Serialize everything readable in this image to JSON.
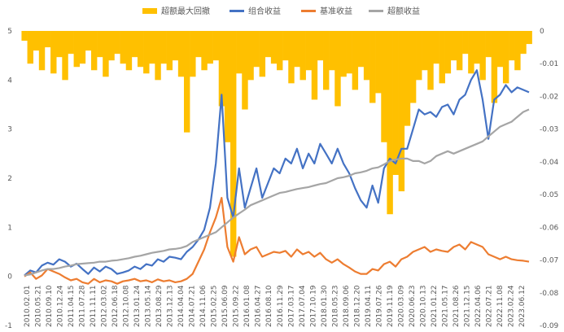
{
  "chart_data": {
    "type": "line",
    "title": "",
    "legend": {
      "placement": "top"
    },
    "grid": false,
    "x_ticks": [
      "2010.02.01",
      "2010.05.21",
      "2010.09.10",
      "2010.12.24",
      "2011.04.15",
      "2011.07.28",
      "2011.11.11",
      "2012.03.02",
      "2012.06.18",
      "2012.10.08",
      "2013.01.24",
      "2013.05.14",
      "2013.08.29",
      "2013.12.13",
      "2014.04.04",
      "2014.07.21",
      "2014.11.06",
      "2015.02.25",
      "2015.06.09",
      "2015.09.22",
      "2016.01.08",
      "2016.04.27",
      "2016.08.10",
      "2016.11.29",
      "2017.03.17",
      "2017.07.04",
      "2017.10.19",
      "2018.01.30",
      "2018.05.23",
      "2018.09.06",
      "2018.12.20",
      "2019.04.11",
      "2019.07.26",
      "2019.11.19",
      "2020.03.09",
      "2020.06.23",
      "2020.10.13",
      "2021.01.22",
      "2021.05.17",
      "2021.08.26",
      "2021.12.15",
      "2022.04.06",
      "2022.07.21",
      "2022.11.08",
      "2023.02.24",
      "2023.06.12"
    ],
    "y_left": {
      "ticks": [
        "5",
        "4",
        "3",
        "2",
        "1",
        "0",
        "-1"
      ],
      "range": [
        -1,
        5
      ]
    },
    "y_right": {
      "ticks": [
        "0",
        "-0.01",
        "-0.02",
        "-0.03",
        "-0.04",
        "-0.05",
        "-0.06",
        "-0.07",
        "-0.08",
        "-0.09"
      ],
      "range": [
        -0.09,
        0
      ]
    },
    "series": [
      {
        "name": "超额最大回撤",
        "type": "area",
        "axis": "right",
        "color": "#FFC000",
        "values": [
          -0.003,
          -0.01,
          -0.006,
          -0.012,
          -0.005,
          -0.013,
          -0.008,
          -0.015,
          -0.007,
          -0.011,
          -0.01,
          -0.006,
          -0.012,
          -0.008,
          -0.014,
          -0.009,
          -0.007,
          -0.01,
          -0.012,
          -0.008,
          -0.011,
          -0.013,
          -0.01,
          -0.015,
          -0.01,
          -0.012,
          -0.009,
          -0.014,
          -0.031,
          -0.014,
          -0.008,
          -0.012,
          -0.01,
          -0.009,
          -0.023,
          -0.034,
          -0.069,
          -0.013,
          -0.024,
          -0.015,
          -0.011,
          -0.014,
          -0.008,
          -0.01,
          -0.012,
          -0.009,
          -0.016,
          -0.011,
          -0.015,
          -0.012,
          -0.021,
          -0.009,
          -0.018,
          -0.012,
          -0.023,
          -0.014,
          -0.013,
          -0.018,
          -0.011,
          -0.015,
          -0.022,
          -0.019,
          -0.034,
          -0.056,
          -0.044,
          -0.049,
          -0.029,
          -0.022,
          -0.015,
          -0.012,
          -0.018,
          -0.01,
          -0.016,
          -0.013,
          -0.009,
          -0.012,
          -0.007,
          -0.013,
          -0.01,
          -0.015,
          -0.008,
          -0.022,
          -0.011,
          -0.016,
          -0.009,
          -0.012,
          -0.007,
          -0.004
        ]
      },
      {
        "name": "组合收益",
        "type": "line",
        "axis": "left",
        "color": "#4472C4",
        "values": [
          0.02,
          0.12,
          0.08,
          0.22,
          0.28,
          0.24,
          0.35,
          0.3,
          0.2,
          0.26,
          0.15,
          0.05,
          0.18,
          0.1,
          0.2,
          0.15,
          0.05,
          0.08,
          0.12,
          0.2,
          0.15,
          0.25,
          0.22,
          0.35,
          0.3,
          0.4,
          0.38,
          0.35,
          0.5,
          0.6,
          0.75,
          0.95,
          1.4,
          2.3,
          3.7,
          1.6,
          1.2,
          2.2,
          1.4,
          1.8,
          2.2,
          1.6,
          1.9,
          2.2,
          2.1,
          2.4,
          2.3,
          2.6,
          2.2,
          2.5,
          2.3,
          2.7,
          2.5,
          2.3,
          2.6,
          2.3,
          2.1,
          1.8,
          1.55,
          1.4,
          1.85,
          1.5,
          2.2,
          2.4,
          2.3,
          2.6,
          2.6,
          3.0,
          3.4,
          3.3,
          3.35,
          3.25,
          3.45,
          3.5,
          3.3,
          3.6,
          3.7,
          4.0,
          4.2,
          3.6,
          2.8,
          3.6,
          3.7,
          3.9,
          3.75,
          3.85,
          3.8,
          3.75
        ]
      },
      {
        "name": "基准收益",
        "type": "line",
        "axis": "left",
        "color": "#ED7D31",
        "values": [
          0.0,
          0.08,
          -0.05,
          0.02,
          0.15,
          0.1,
          0.05,
          -0.02,
          -0.08,
          -0.05,
          -0.12,
          -0.15,
          -0.05,
          -0.12,
          -0.08,
          -0.1,
          -0.15,
          -0.1,
          -0.08,
          -0.05,
          -0.1,
          -0.08,
          -0.12,
          -0.06,
          -0.1,
          -0.08,
          -0.12,
          -0.1,
          -0.05,
          0.05,
          0.3,
          0.55,
          0.9,
          1.2,
          1.6,
          0.6,
          0.3,
          0.8,
          0.45,
          0.55,
          0.6,
          0.4,
          0.45,
          0.5,
          0.48,
          0.52,
          0.4,
          0.55,
          0.45,
          0.5,
          0.4,
          0.48,
          0.35,
          0.28,
          0.35,
          0.25,
          0.18,
          0.1,
          0.05,
          0.05,
          0.15,
          0.12,
          0.25,
          0.3,
          0.2,
          0.35,
          0.4,
          0.5,
          0.55,
          0.6,
          0.5,
          0.55,
          0.52,
          0.5,
          0.6,
          0.65,
          0.55,
          0.7,
          0.65,
          0.6,
          0.45,
          0.4,
          0.35,
          0.4,
          0.35,
          0.33,
          0.32,
          0.3
        ]
      },
      {
        "name": "超额收益",
        "type": "line",
        "axis": "left",
        "color": "#A5A5A5",
        "values": [
          0.02,
          0.04,
          0.08,
          0.12,
          0.15,
          0.15,
          0.17,
          0.2,
          0.22,
          0.25,
          0.26,
          0.27,
          0.28,
          0.3,
          0.3,
          0.32,
          0.33,
          0.35,
          0.37,
          0.4,
          0.42,
          0.45,
          0.48,
          0.5,
          0.52,
          0.55,
          0.56,
          0.58,
          0.62,
          0.7,
          0.75,
          0.8,
          0.85,
          0.9,
          1.0,
          1.1,
          1.2,
          1.28,
          1.36,
          1.45,
          1.5,
          1.55,
          1.6,
          1.65,
          1.7,
          1.72,
          1.75,
          1.78,
          1.8,
          1.82,
          1.85,
          1.88,
          1.9,
          1.95,
          2.0,
          2.02,
          2.05,
          2.1,
          2.12,
          2.15,
          2.2,
          2.22,
          2.28,
          2.35,
          2.38,
          2.4,
          2.4,
          2.35,
          2.35,
          2.3,
          2.35,
          2.45,
          2.5,
          2.55,
          2.5,
          2.55,
          2.6,
          2.65,
          2.7,
          2.75,
          2.85,
          2.95,
          3.05,
          3.1,
          3.15,
          3.25,
          3.35,
          3.4
        ]
      }
    ]
  }
}
